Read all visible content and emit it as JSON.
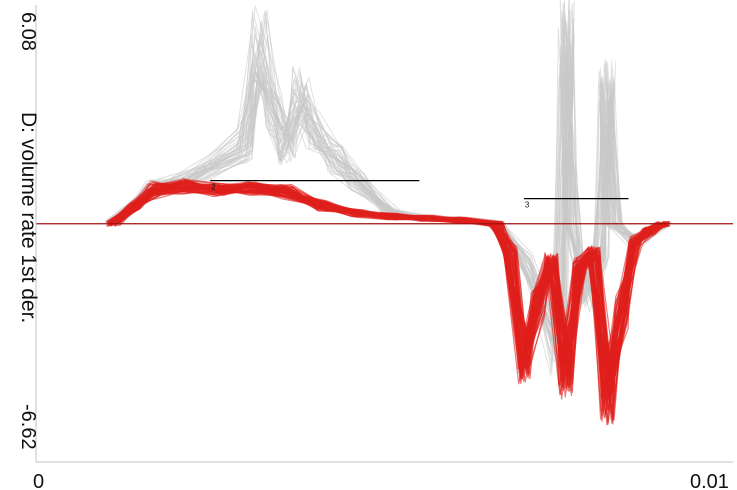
{
  "chart_data": {
    "type": "line",
    "ylabel": "D: volume rate 1st der.",
    "xlim": [
      0,
      0.01
    ],
    "ylim": [
      -6.62,
      6.08
    ],
    "x_tick_labels": [
      "0",
      "0.01"
    ],
    "y_tick_labels": [
      "6.08",
      "-6.62"
    ],
    "grid": false,
    "colors": {
      "highlighted": "#e0201c",
      "background_curves": "#c8c8c8",
      "zero_line": "#a01010",
      "axes": "#b8c4cc",
      "segment_lines": "#000000"
    },
    "series": [
      {
        "role": "highlighted",
        "x": [
          0.0011,
          0.0014,
          0.0017,
          0.0021,
          0.0026,
          0.0031,
          0.0036,
          0.0041,
          0.0046,
          0.0051,
          0.0056,
          0.0061,
          0.0066,
          0.0068,
          0.007,
          0.0072,
          0.0074,
          0.0076,
          0.0078,
          0.008,
          0.0082,
          0.0084,
          0.0086,
          0.0088,
          0.009
        ],
        "y": [
          0.0,
          0.45,
          0.95,
          1.05,
          0.95,
          1.0,
          0.9,
          0.5,
          0.3,
          0.2,
          0.15,
          0.1,
          0.0,
          -0.8,
          -3.8,
          -2.2,
          -1.0,
          -4.2,
          -1.2,
          -0.8,
          -4.8,
          -2.5,
          -0.5,
          -0.2,
          0.0
        ]
      },
      {
        "role": "background",
        "x": [
          0.0011,
          0.0017,
          0.0021,
          0.003,
          0.0032,
          0.0034,
          0.0036,
          0.0038,
          0.004,
          0.0043,
          0.0046,
          0.0051,
          0.0056,
          0.0061,
          0.0066,
          0.007,
          0.0075,
          0.0076,
          0.0077,
          0.0079,
          0.0081,
          0.0082,
          0.0083,
          0.0086,
          0.009
        ],
        "y": [
          0.0,
          1.0,
          1.1,
          2.2,
          5.0,
          3.2,
          2.2,
          3.6,
          2.6,
          1.8,
          1.2,
          0.3,
          0.15,
          0.1,
          0.0,
          -1.0,
          -3.5,
          5.2,
          0.0,
          -2.0,
          -1.0,
          3.8,
          0.0,
          -0.5,
          0.0
        ]
      }
    ],
    "segments": [
      {
        "label": "2",
        "x": [
          0.0025,
          0.0055
        ],
        "y": 1.2
      },
      {
        "label": "3",
        "x": [
          0.007,
          0.0085
        ],
        "y": 0.7
      }
    ]
  }
}
